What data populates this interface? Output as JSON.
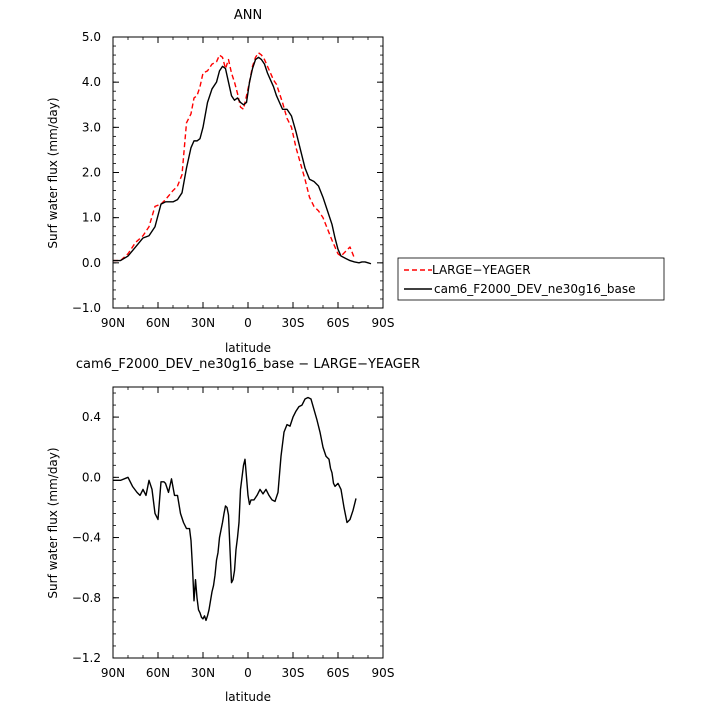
{
  "chart_data": [
    {
      "type": "line",
      "title": "ANN",
      "xlabel": "latitude",
      "ylabel": "Surf water flux (mm/day)",
      "xlim": [
        90,
        -90
      ],
      "ylim": [
        -1.0,
        5.0
      ],
      "x_ticks": [
        90,
        60,
        30,
        0,
        -30,
        -60,
        -90
      ],
      "x_tick_labels": [
        "90N",
        "60N",
        "30N",
        "0",
        "30S",
        "60S",
        "90S"
      ],
      "y_ticks": [
        -1.0,
        0.0,
        1.0,
        2.0,
        3.0,
        4.0,
        5.0
      ],
      "y_tick_labels": [
        "−1.0",
        "0.0",
        "1.0",
        "2.0",
        "3.0",
        "4.0",
        "5.0"
      ],
      "legend_position": "outside-right",
      "series": [
        {
          "name": "LARGE−YEAGER",
          "color": "#ff0000",
          "dash": "dashed",
          "x": [
            90,
            85,
            80,
            75,
            70,
            66,
            62,
            58,
            55,
            50,
            47,
            44,
            41,
            38,
            36,
            34,
            32,
            30,
            27,
            24,
            21,
            19,
            17,
            15,
            13,
            11,
            9,
            7,
            5,
            3,
            1,
            -1,
            -3,
            -5,
            -7,
            -9,
            -11,
            -13,
            -15,
            -17,
            -19,
            -21,
            -23,
            -26,
            -29,
            -32,
            -35,
            -38,
            -41,
            -44,
            -47,
            -50,
            -53,
            -56,
            -58,
            -60,
            -62,
            -65,
            -68,
            -71,
            -74,
            -76,
            -78,
            -80
          ],
          "y": [
            0.05,
            0.05,
            0.2,
            0.45,
            0.6,
            0.8,
            1.25,
            1.3,
            1.4,
            1.6,
            1.7,
            1.95,
            3.1,
            3.3,
            3.65,
            3.7,
            3.9,
            4.2,
            4.25,
            4.4,
            4.45,
            4.6,
            4.55,
            4.3,
            4.5,
            4.2,
            4.0,
            3.75,
            3.45,
            3.4,
            3.7,
            4.0,
            4.35,
            4.55,
            4.65,
            4.6,
            4.5,
            4.35,
            4.2,
            4.05,
            3.95,
            3.75,
            3.55,
            3.2,
            3.0,
            2.55,
            2.2,
            1.85,
            1.45,
            1.25,
            1.15,
            1.0,
            0.75,
            0.5,
            0.35,
            0.2,
            0.15,
            0.25,
            0.35,
            0.1,
            null,
            null,
            null,
            null
          ]
        },
        {
          "name": "cam6_F2000_DEV_ne30g16_base",
          "color": "#000000",
          "dash": "solid",
          "x": [
            90,
            85,
            80,
            75,
            70,
            66,
            62,
            58,
            55,
            50,
            47,
            44,
            41,
            38,
            36,
            34,
            32,
            30,
            27,
            24,
            21,
            19,
            17,
            15,
            13,
            11,
            9,
            7,
            5,
            3,
            1,
            -1,
            -3,
            -5,
            -7,
            -9,
            -11,
            -13,
            -15,
            -17,
            -19,
            -21,
            -23,
            -26,
            -29,
            -32,
            -35,
            -38,
            -41,
            -44,
            -47,
            -50,
            -53,
            -56,
            -58,
            -60,
            -62,
            -65,
            -68,
            -71,
            -74,
            -76,
            -78,
            -80,
            -82,
            -84,
            -87,
            -90
          ],
          "y": [
            0.05,
            0.05,
            0.15,
            0.35,
            0.55,
            0.6,
            0.8,
            1.3,
            1.35,
            1.35,
            1.4,
            1.55,
            2.1,
            2.55,
            2.7,
            2.7,
            2.75,
            3.0,
            3.55,
            3.85,
            4.0,
            4.25,
            4.35,
            4.3,
            4.0,
            3.7,
            3.6,
            3.65,
            3.55,
            3.5,
            3.55,
            4.0,
            4.3,
            4.5,
            4.55,
            4.5,
            4.4,
            4.2,
            4.05,
            3.9,
            3.7,
            3.55,
            3.4,
            3.4,
            3.25,
            2.9,
            2.5,
            2.1,
            1.85,
            1.8,
            1.7,
            1.45,
            1.15,
            0.85,
            0.55,
            0.3,
            0.15,
            0.1,
            0.05,
            0.02,
            0.0,
            0.02,
            0.02,
            0.0,
            -0.02,
            null,
            null,
            null
          ]
        }
      ]
    },
    {
      "type": "line",
      "title": "cam6_F2000_DEV_ne30g16_base − LARGE−YEAGER",
      "xlabel": "latitude",
      "ylabel": "Surf water flux (mm/day)",
      "xlim": [
        90,
        -90
      ],
      "ylim": [
        -1.2,
        0.6
      ],
      "x_ticks": [
        90,
        60,
        30,
        0,
        -30,
        -60,
        -90
      ],
      "x_tick_labels": [
        "90N",
        "60N",
        "30N",
        "0",
        "30S",
        "60S",
        "90S"
      ],
      "y_ticks": [
        -1.2,
        -0.8,
        -0.4,
        0.0,
        0.4
      ],
      "y_tick_labels": [
        "−1.2",
        "−0.8",
        "−0.4",
        "0.0",
        "0.4"
      ],
      "series": [
        {
          "name": "",
          "color": "#000000",
          "dash": "solid",
          "x": [
            90,
            85,
            80,
            77,
            74,
            72,
            70,
            68,
            66,
            64,
            62,
            60,
            58,
            56,
            55,
            53,
            51,
            49,
            47,
            45,
            43,
            41,
            40,
            39,
            38,
            37,
            36,
            35,
            34,
            33,
            32,
            31,
            30,
            29,
            28,
            27,
            26,
            25,
            24,
            23,
            22,
            21,
            20,
            19,
            18,
            17,
            16,
            15,
            14,
            13,
            12,
            11,
            10,
            9,
            8,
            7,
            6,
            5,
            4,
            3,
            2,
            1,
            0,
            -1,
            -2,
            -4,
            -6,
            -8,
            -10,
            -12,
            -14,
            -16,
            -18,
            -20,
            -22,
            -24,
            -26,
            -28,
            -30,
            -32,
            -34,
            -36,
            -38,
            -40,
            -42,
            -44,
            -46,
            -48,
            -50,
            -52,
            -54,
            -55,
            -56,
            -57,
            -58,
            -60,
            -62,
            -64,
            -66,
            -68,
            -70,
            -72,
            -74,
            -76,
            -78,
            -80
          ],
          "y": [
            -0.02,
            -0.02,
            0.0,
            -0.06,
            -0.1,
            -0.12,
            -0.08,
            -0.12,
            -0.02,
            -0.08,
            -0.24,
            -0.28,
            -0.03,
            -0.03,
            -0.04,
            -0.1,
            -0.01,
            -0.12,
            -0.12,
            -0.24,
            -0.3,
            -0.34,
            -0.34,
            -0.34,
            -0.42,
            -0.6,
            -0.82,
            -0.68,
            -0.8,
            -0.88,
            -0.9,
            -0.93,
            -0.94,
            -0.92,
            -0.95,
            -0.92,
            -0.88,
            -0.82,
            -0.76,
            -0.72,
            -0.65,
            -0.55,
            -0.5,
            -0.4,
            -0.35,
            -0.3,
            -0.24,
            -0.19,
            -0.2,
            -0.25,
            -0.48,
            -0.7,
            -0.68,
            -0.62,
            -0.48,
            -0.4,
            -0.3,
            -0.08,
            0.0,
            0.08,
            0.12,
            0.0,
            -0.12,
            -0.18,
            -0.15,
            -0.15,
            -0.12,
            -0.08,
            -0.11,
            -0.08,
            -0.12,
            -0.15,
            -0.16,
            -0.1,
            0.14,
            0.3,
            0.35,
            0.34,
            0.4,
            0.44,
            0.47,
            0.48,
            0.52,
            0.53,
            0.52,
            0.45,
            0.38,
            0.3,
            0.2,
            0.14,
            0.12,
            0.06,
            0.03,
            -0.04,
            -0.06,
            -0.04,
            -0.08,
            -0.2,
            -0.3,
            -0.28,
            -0.22,
            -0.14,
            null,
            null,
            null,
            null
          ],
          "_note_ignore": ""
        }
      ]
    }
  ]
}
